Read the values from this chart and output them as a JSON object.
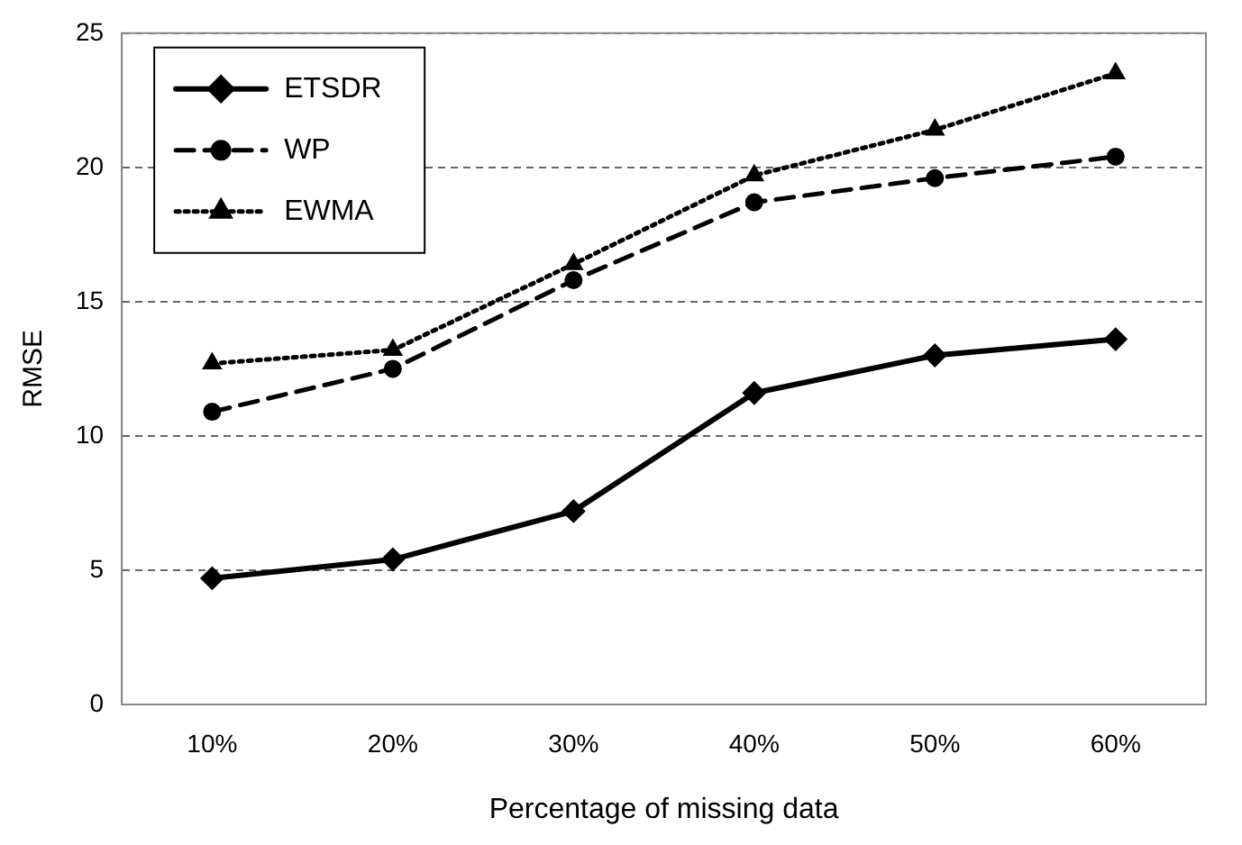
{
  "chart_data": {
    "type": "line",
    "xlabel": "Percentage of missing data",
    "ylabel": "RMSE",
    "categories": [
      "10%",
      "20%",
      "30%",
      "40%",
      "50%",
      "60%"
    ],
    "series": [
      {
        "name": "ETSDR",
        "color": "#000000",
        "values": [
          4.7,
          5.4,
          7.2,
          11.6,
          13.0,
          13.6
        ],
        "marker": "diamond",
        "line_style": "solid"
      },
      {
        "name": "WP",
        "color": "#000000",
        "values": [
          10.9,
          12.5,
          15.8,
          18.7,
          19.6,
          20.4
        ],
        "marker": "circle",
        "line_style": "dashed"
      },
      {
        "name": "EWMA",
        "color": "#000000",
        "values": [
          12.7,
          13.2,
          16.4,
          19.7,
          21.4,
          23.5
        ],
        "marker": "triangle",
        "line_style": "dotted"
      }
    ],
    "ylim": [
      0,
      25
    ],
    "yticks": [
      0,
      5,
      10,
      15,
      20,
      25
    ],
    "grid": "y",
    "legend": "top left"
  }
}
